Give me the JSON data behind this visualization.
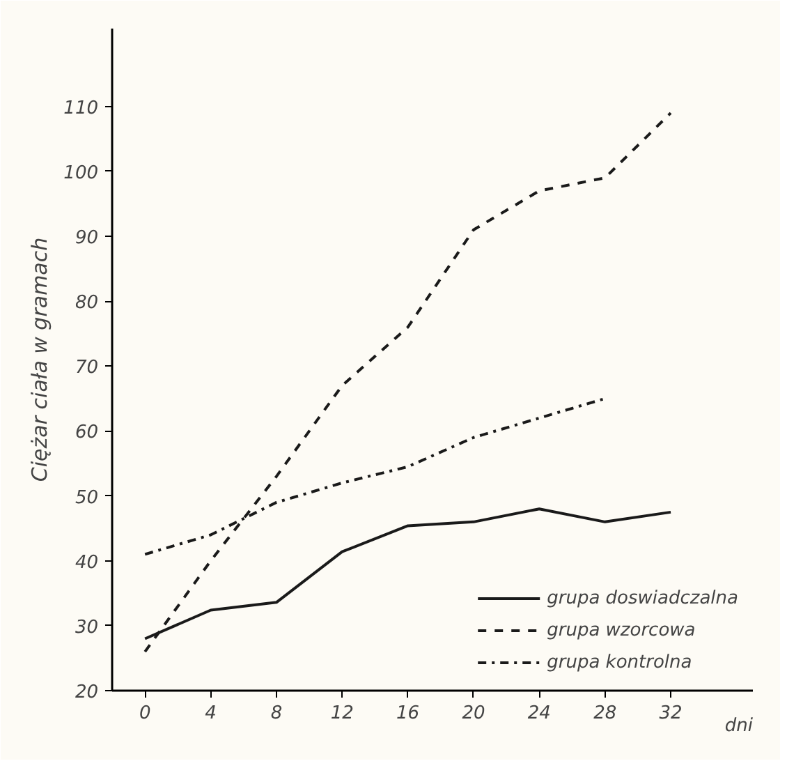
{
  "chart_data": {
    "type": "line",
    "xlabel": "dni",
    "ylabel": "Ciężar ciała w gramach",
    "x": [
      0,
      4,
      8,
      12,
      16,
      20,
      24,
      28,
      32
    ],
    "series": [
      {
        "name": "grupa doswiadczalna",
        "color": "#1a1a1a",
        "line_style": "solid",
        "values": [
          28,
          32.4,
          33.6,
          41.4,
          45.4,
          46,
          48,
          46,
          47.5
        ]
      },
      {
        "name": "grupa wzorcowa",
        "color": "#1a1a1a",
        "line_style": "dashed",
        "values": [
          26,
          40,
          53,
          67,
          76,
          91,
          97,
          99,
          109
        ]
      },
      {
        "name": "grupa kontrolna",
        "color": "#1a1a1a",
        "line_style": "dashdot",
        "values": [
          41,
          44,
          49,
          52,
          54.5,
          59,
          62,
          65,
          null
        ]
      }
    ],
    "xlim": [
      -2,
      37
    ],
    "ylim": [
      20,
      122
    ],
    "xticks": [
      0,
      4,
      8,
      12,
      16,
      20,
      24,
      28,
      32
    ],
    "yticks": [
      20,
      30,
      40,
      50,
      60,
      70,
      80,
      90,
      100,
      110
    ],
    "grid": false,
    "legend": "bottom right",
    "marker": "none"
  }
}
